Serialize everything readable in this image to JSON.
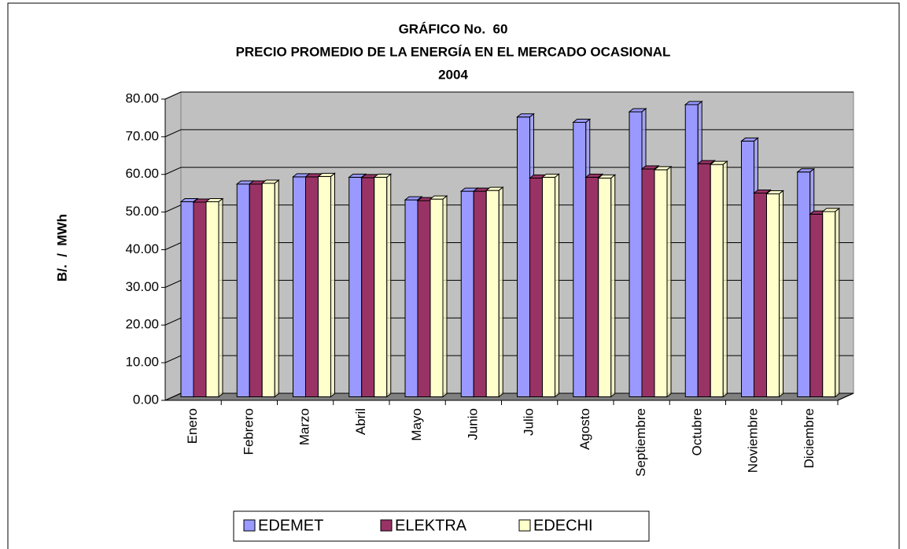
{
  "chart_data": {
    "type": "bar3d",
    "title": [
      "GRÁFICO No.  60",
      "PRECIO PROMEDIO DE LA ENERGÍA EN EL MERCADO OCASIONAL",
      "2004"
    ],
    "y_label": "B/.  /  MWh",
    "categories": [
      "Enero",
      "Febrero",
      "Marzo",
      "Abril",
      "Mayo",
      "Junio",
      "Julio",
      "Agosto",
      "Septiembre",
      "Octubre",
      "Noviembre",
      "Diciembre"
    ],
    "series": [
      {
        "name": "EDEMET",
        "color": "#9999ff",
        "values": [
          51.8,
          56.5,
          58.4,
          58.3,
          52.3,
          54.6,
          74.3,
          72.9,
          75.7,
          77.6,
          67.9,
          59.7
        ]
      },
      {
        "name": "ELEKTRA",
        "color": "#993366",
        "values": [
          51.7,
          56.5,
          58.4,
          58.2,
          52.1,
          54.6,
          58.1,
          58.3,
          60.5,
          61.9,
          54.1,
          48.5
        ]
      },
      {
        "name": "EDECHI",
        "color": "#ffffcc",
        "values": [
          51.8,
          56.7,
          58.5,
          58.3,
          52.5,
          54.8,
          58.3,
          58.1,
          60.3,
          61.7,
          53.9,
          49.2
        ]
      }
    ],
    "ylim": [
      0,
      80
    ],
    "yticks": [
      {
        "value": 0,
        "label": "0.00"
      },
      {
        "value": 10,
        "label": "10.00"
      },
      {
        "value": 20,
        "label": "20.00"
      },
      {
        "value": 30,
        "label": "30.00"
      },
      {
        "value": 40,
        "label": "40.00"
      },
      {
        "value": 50,
        "label": "50.00"
      },
      {
        "value": 60,
        "label": "60.00"
      },
      {
        "value": 70,
        "label": "70.00"
      },
      {
        "value": 80,
        "label": "80.00"
      }
    ],
    "grid": true,
    "legend": "bottom"
  }
}
